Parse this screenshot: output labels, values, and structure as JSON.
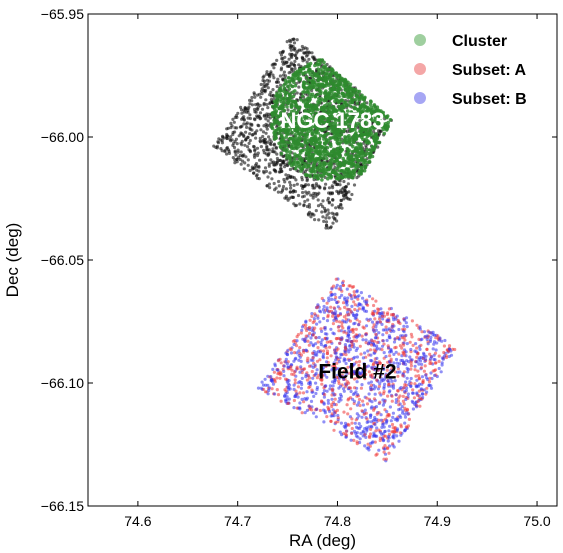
{
  "chart_data": {
    "type": "scatter",
    "xlabel": "RA (deg)",
    "ylabel": "Dec (deg)",
    "xlim": [
      74.55,
      75.02
    ],
    "ylim": [
      -66.15,
      -65.95
    ],
    "x_ticks": [
      "74.6",
      "74.7",
      "74.8",
      "74.9",
      "75.0"
    ],
    "y_ticks": [
      "−65.95",
      "−66.00",
      "−66.05",
      "−66.10",
      "−66.15"
    ],
    "x_tick_values": [
      74.6,
      74.7,
      74.8,
      74.9,
      75.0
    ],
    "y_tick_values": [
      -65.95,
      -66.0,
      -66.05,
      -66.1,
      -66.15
    ],
    "grid": false,
    "legend_position": "top-right",
    "colors": {
      "field": "#111111",
      "cluster": "#2e8b2e",
      "subset_a": "#ee3333",
      "subset_b": "#3333ee",
      "legend_cluster": "#9fcf9f",
      "legend_subset_a": "#f4a6a6",
      "legend_subset_b": "#a6a6f4"
    },
    "series": [
      {
        "name": "Cluster",
        "color": "#2e8b2e",
        "region": {
          "corners": [
            [
              74.755,
              -65.958
            ],
            [
              74.855,
              -65.993
            ],
            [
              74.795,
              -66.039
            ],
            [
              74.675,
              -66.004
            ]
          ],
          "circle_center": [
            74.795,
            -65.993
          ],
          "circle_radius_deg": 0.025
        }
      },
      {
        "name": "Subset: A",
        "color": "#ee3333",
        "region": {
          "corners": [
            [
              74.8,
              -66.057
            ],
            [
              74.92,
              -66.085
            ],
            [
              74.85,
              -66.132
            ],
            [
              74.72,
              -66.102
            ]
          ]
        }
      },
      {
        "name": "Subset: B",
        "color": "#3333ee",
        "region": {
          "corners": [
            [
              74.8,
              -66.057
            ],
            [
              74.92,
              -66.085
            ],
            [
              74.85,
              -66.132
            ],
            [
              74.72,
              -66.102
            ]
          ]
        }
      }
    ],
    "legend": [
      {
        "label": "Cluster",
        "color_key": "legend_cluster"
      },
      {
        "label": "Subset: A",
        "color_key": "legend_subset_a"
      },
      {
        "label": "Subset: B",
        "color_key": "legend_subset_b"
      }
    ],
    "annotations": [
      {
        "text": "NGC 1783",
        "x": 74.795,
        "y": -65.993,
        "color": "#ffffff"
      },
      {
        "text": "Field #2",
        "x": 74.82,
        "y": -66.095,
        "color": "#000000"
      }
    ]
  }
}
